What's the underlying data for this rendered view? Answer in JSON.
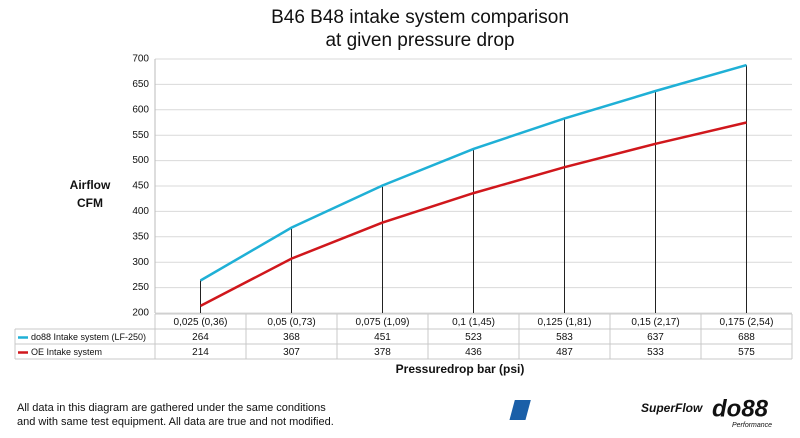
{
  "chart_data": {
    "type": "line",
    "title": [
      "B46 B48 intake system comparison",
      "at given pressure drop"
    ],
    "y_label": [
      "Airflow",
      "CFM"
    ],
    "x_label": "Pressuredrop bar (psi)",
    "categories": [
      "0,025 (0,36)",
      "0,05 (0,73)",
      "0,075 (1,09)",
      "0,1 (1,45)",
      "0,125 (1,81)",
      "0,15 (2,17)",
      "0,175 (2,54)"
    ],
    "series": [
      {
        "name": "do88 Intake system (LF-250)",
        "color": "#1fb0d6",
        "values": [
          264,
          368,
          451,
          523,
          583,
          637,
          688
        ]
      },
      {
        "name": "OE Intake system",
        "color": "#d0171c",
        "values": [
          214,
          307,
          378,
          436,
          487,
          533,
          575
        ]
      }
    ],
    "ylim": [
      200,
      700
    ],
    "yticks": [
      200,
      250,
      300,
      350,
      400,
      450,
      500,
      550,
      600,
      650,
      700
    ],
    "grid": true,
    "data_table": true
  },
  "footnote": [
    "All data in this diagram are gathered under the same conditions",
    "and with same test equipment. All data are true and not modified."
  ],
  "logos": {
    "superflow": "SuperFlow",
    "do88": "do88",
    "do88_sub": "Performance"
  }
}
